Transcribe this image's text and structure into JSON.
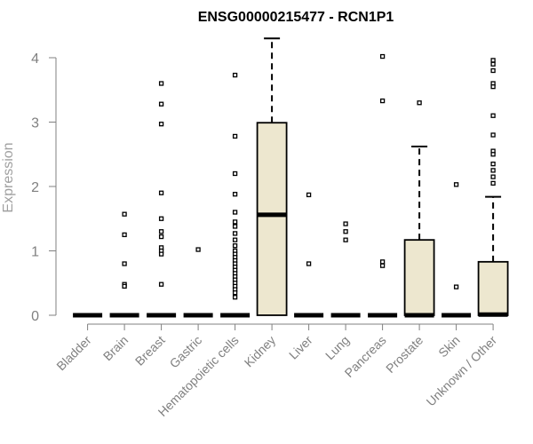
{
  "chart_data": {
    "type": "box",
    "title": "ENSG00000215477 - RCN1P1",
    "ylabel": "Expression",
    "xlabel": "",
    "ylim": [
      0,
      4.35
    ],
    "yticks": [
      0,
      1,
      2,
      3,
      4
    ],
    "grid": false,
    "box_fill": "#ede7cf",
    "box_stroke": "#000000",
    "axis_color": "#808080",
    "categories": [
      "Bladder",
      "Brain",
      "Breast",
      "Gastric",
      "Hematopoietic cells",
      "Kidney",
      "Liver",
      "Lung",
      "Pancreas",
      "Prostate",
      "Skin",
      "Unknown / Other"
    ],
    "boxes": [
      {
        "category": "Bladder",
        "q1": 0,
        "median": 0,
        "q3": 0,
        "whisker_low": 0,
        "whisker_high": 0,
        "outliers": []
      },
      {
        "category": "Brain",
        "q1": 0,
        "median": 0,
        "q3": 0,
        "whisker_low": 0,
        "whisker_high": 0,
        "outliers": [
          1.57,
          1.25,
          0.8,
          0.48,
          0.45
        ]
      },
      {
        "category": "Breast",
        "q1": 0,
        "median": 0,
        "q3": 0,
        "whisker_low": 0,
        "whisker_high": 0,
        "outliers": [
          3.6,
          3.28,
          2.97,
          1.9,
          1.5,
          1.3,
          1.22,
          1.05,
          1.0,
          0.95,
          0.48
        ]
      },
      {
        "category": "Gastric",
        "q1": 0,
        "median": 0,
        "q3": 0,
        "whisker_low": 0,
        "whisker_high": 0,
        "outliers": [
          1.02
        ]
      },
      {
        "category": "Hematopoietic cells",
        "q1": 0,
        "median": 0,
        "q3": 0,
        "whisker_low": 0,
        "whisker_high": 0,
        "outliers": [
          3.73,
          2.78,
          2.2,
          1.88,
          1.6,
          1.45,
          1.38,
          1.27,
          1.17,
          1.08,
          1.0,
          0.95,
          0.9,
          0.85,
          0.8,
          0.75,
          0.7,
          0.65,
          0.6,
          0.55,
          0.5,
          0.45,
          0.4,
          0.35,
          0.28
        ]
      },
      {
        "category": "Kidney",
        "q1": 0,
        "median": 1.56,
        "q3": 2.99,
        "whisker_low": 0,
        "whisker_high": 4.3,
        "outliers": []
      },
      {
        "category": "Liver",
        "q1": 0,
        "median": 0,
        "q3": 0,
        "whisker_low": 0,
        "whisker_high": 0,
        "outliers": [
          1.87,
          0.8
        ]
      },
      {
        "category": "Lung",
        "q1": 0,
        "median": 0,
        "q3": 0,
        "whisker_low": 0,
        "whisker_high": 0,
        "outliers": [
          1.42,
          1.3,
          1.17
        ]
      },
      {
        "category": "Pancreas",
        "q1": 0,
        "median": 0,
        "q3": 0,
        "whisker_low": 0,
        "whisker_high": 0,
        "outliers": [
          4.02,
          3.33,
          0.83,
          0.77
        ]
      },
      {
        "category": "Prostate",
        "q1": 0,
        "median": 0,
        "q3": 1.17,
        "whisker_low": 0,
        "whisker_high": 2.62,
        "outliers": [
          3.3
        ]
      },
      {
        "category": "Skin",
        "q1": 0,
        "median": 0,
        "q3": 0,
        "whisker_low": 0,
        "whisker_high": 0,
        "outliers": [
          2.03,
          0.44
        ]
      },
      {
        "category": "Unknown / Other",
        "q1": 0,
        "median": 0.01,
        "q3": 0.83,
        "whisker_low": 0,
        "whisker_high": 1.84,
        "outliers": [
          3.96,
          3.9,
          3.8,
          3.6,
          3.55,
          3.1,
          2.8,
          2.55,
          2.5,
          2.35,
          2.25,
          2.15,
          2.05
        ]
      }
    ]
  }
}
